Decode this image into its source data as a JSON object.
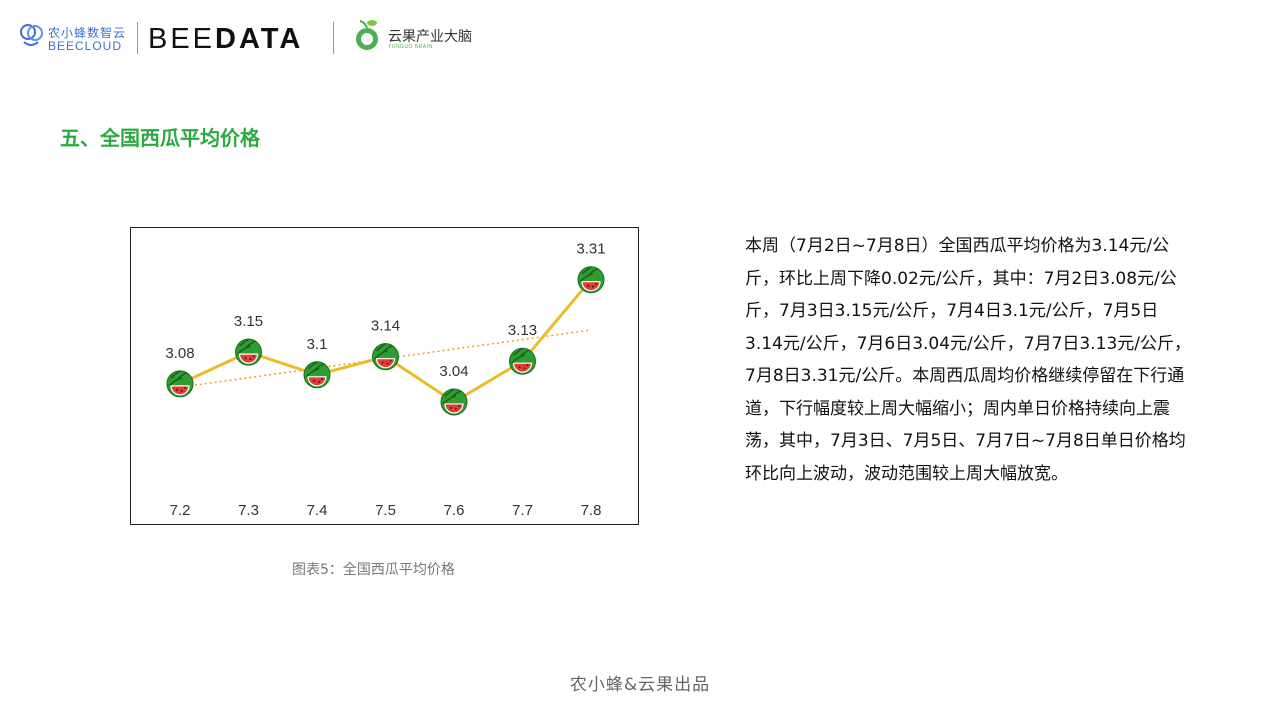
{
  "header": {
    "beecloud_cn": "农小蜂数智云",
    "beecloud_en": "BEECLOUD",
    "beedata_a": "BEE",
    "beedata_b": "DATA",
    "yunguo_cn": "云果产业大脑",
    "yunguo_en": "YUNGUO BRAIN",
    "brand_blue": "#3a6fd8",
    "brand_green": "#4caf50"
  },
  "section": {
    "title": "五、全国西瓜平均价格",
    "title_color": "#2bab3f"
  },
  "chart_data": {
    "type": "line",
    "title": "",
    "xlabel": "",
    "ylabel": "",
    "categories": [
      "7.2",
      "7.3",
      "7.4",
      "7.5",
      "7.6",
      "7.7",
      "7.8"
    ],
    "values": [
      3.08,
      3.15,
      3.1,
      3.14,
      3.04,
      3.13,
      3.31
    ],
    "data_labels": [
      "3.08",
      "3.15",
      "3.1",
      "3.14",
      "3.04",
      "3.13",
      "3.31"
    ],
    "ylim": [
      2.85,
      3.38
    ],
    "trendline": "linear",
    "marker_icon": "watermelon-icon",
    "line_color": "#f0b92a",
    "trend_color": "#e9a21a",
    "grid": false,
    "legend": "none"
  },
  "caption": "图表5：全国西瓜平均价格",
  "description": "本周（7月2日~7月8日）全国西瓜平均价格为3.14元/公斤，环比上周下降0.02元/公斤，其中：7月2日3.08元/公斤，7月3日3.15元/公斤，7月4日3.1元/公斤，7月5日3.14元/公斤，7月6日3.04元/公斤，7月7日3.13元/公斤，7月8日3.31元/公斤。本周西瓜周均价格继续停留在下行通道，下行幅度较上周大幅缩小；周内单日价格持续向上震荡，其中，7月3日、7月5日、7月7日~7月8日单日价格均环比向上波动，波动范围较上周大幅放宽。",
  "footer": "农小蜂&云果出品"
}
